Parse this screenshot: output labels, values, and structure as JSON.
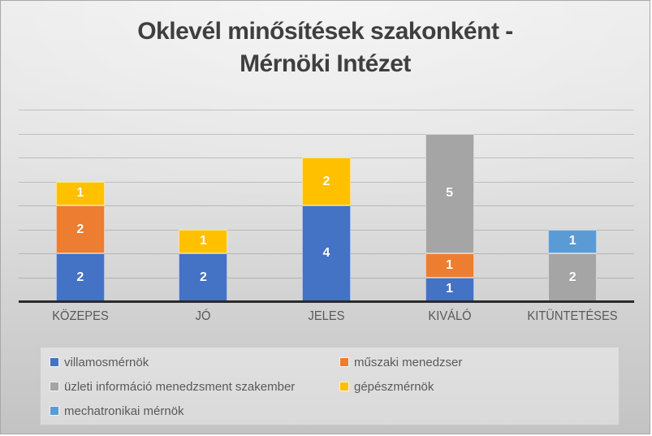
{
  "chart_data": {
    "type": "bar",
    "stacked": true,
    "title": "Oklevél minősítések szakonként - Mérnöki Intézet",
    "title_lines": [
      "Oklevél minősítések szakonként -",
      "Mérnöki Intézet"
    ],
    "categories": [
      "KÖZEPES",
      "JÓ",
      "JELES",
      "KIVÁLÓ",
      "KITÜNTETÉSES"
    ],
    "series": [
      {
        "name": "villamosmérnök",
        "color": "#4472C4",
        "values": [
          2,
          2,
          4,
          1,
          0
        ]
      },
      {
        "name": "műszaki menedzser",
        "color": "#ED7D31",
        "values": [
          2,
          0,
          0,
          1,
          0
        ]
      },
      {
        "name": "üzleti információ menedzsment szakember",
        "color": "#A5A5A5",
        "values": [
          0,
          0,
          0,
          5,
          2
        ]
      },
      {
        "name": "gépészmérnök",
        "color": "#FFC000",
        "values": [
          1,
          1,
          2,
          0,
          0
        ]
      },
      {
        "name": "mechatronikai mérnök",
        "color": "#5B9BD5",
        "values": [
          0,
          0,
          0,
          0,
          1
        ]
      }
    ],
    "ylim": [
      0,
      8
    ],
    "grid": true,
    "gridline_step": 1,
    "data_labels": true,
    "legend_position": "bottom",
    "colors": {
      "title_text": "#3f3f3f",
      "axis_text": "#595959",
      "data_label_text": "#ffffff",
      "axis_line": "#2b2b2b"
    }
  }
}
